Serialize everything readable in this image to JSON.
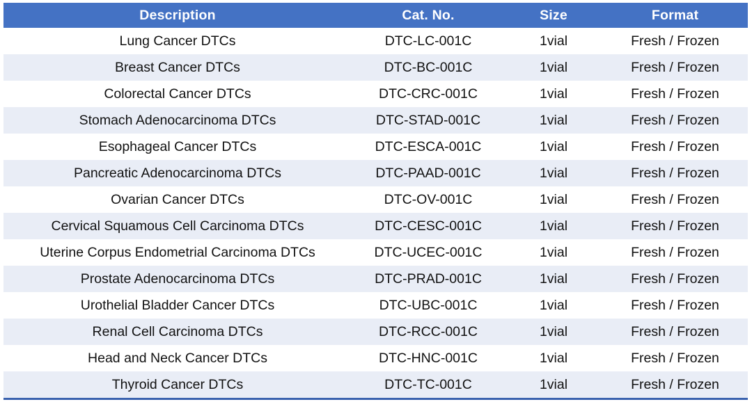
{
  "colors": {
    "header_bg": "#4472C4",
    "header_text": "#FFFFFF",
    "band_row_bg": "#E9EDF6",
    "bottom_border": "#3A62AE"
  },
  "table": {
    "columns": [
      {
        "key": "description",
        "label": "Description"
      },
      {
        "key": "cat_no",
        "label": "Cat. No."
      },
      {
        "key": "size",
        "label": "Size"
      },
      {
        "key": "format",
        "label": "Format"
      }
    ],
    "rows": [
      {
        "description": "Lung Cancer DTCs",
        "cat_no": "DTC-LC-001C",
        "size": "1vial",
        "format": "Fresh / Frozen"
      },
      {
        "description": "Breast Cancer DTCs",
        "cat_no": "DTC-BC-001C",
        "size": "1vial",
        "format": "Fresh / Frozen"
      },
      {
        "description": "Colorectal Cancer DTCs",
        "cat_no": "DTC-CRC-001C",
        "size": "1vial",
        "format": "Fresh / Frozen"
      },
      {
        "description": "Stomach Adenocarcinoma DTCs",
        "cat_no": "DTC-STAD-001C",
        "size": "1vial",
        "format": "Fresh / Frozen"
      },
      {
        "description": "Esophageal Cancer DTCs",
        "cat_no": "DTC-ESCA-001C",
        "size": "1vial",
        "format": "Fresh / Frozen"
      },
      {
        "description": "Pancreatic Adenocarcinoma DTCs",
        "cat_no": "DTC-PAAD-001C",
        "size": "1vial",
        "format": "Fresh / Frozen"
      },
      {
        "description": "Ovarian Cancer DTCs",
        "cat_no": "DTC-OV-001C",
        "size": "1vial",
        "format": "Fresh / Frozen"
      },
      {
        "description": "Cervical Squamous Cell Carcinoma DTCs",
        "cat_no": "DTC-CESC-001C",
        "size": "1vial",
        "format": "Fresh / Frozen"
      },
      {
        "description": "Uterine Corpus Endometrial Carcinoma DTCs",
        "cat_no": "DTC-UCEC-001C",
        "size": "1vial",
        "format": "Fresh / Frozen"
      },
      {
        "description": "Prostate Adenocarcinoma DTCs",
        "cat_no": "DTC-PRAD-001C",
        "size": "1vial",
        "format": "Fresh / Frozen"
      },
      {
        "description": "Urothelial Bladder Cancer DTCs",
        "cat_no": "DTC-UBC-001C",
        "size": "1vial",
        "format": "Fresh / Frozen"
      },
      {
        "description": "Renal Cell Carcinoma DTCs",
        "cat_no": "DTC-RCC-001C",
        "size": "1vial",
        "format": "Fresh / Frozen"
      },
      {
        "description": "Head and Neck Cancer DTCs",
        "cat_no": "DTC-HNC-001C",
        "size": "1vial",
        "format": "Fresh / Frozen"
      },
      {
        "description": "Thyroid Cancer DTCs",
        "cat_no": "DTC-TC-001C",
        "size": "1vial",
        "format": "Fresh / Frozen"
      }
    ]
  }
}
